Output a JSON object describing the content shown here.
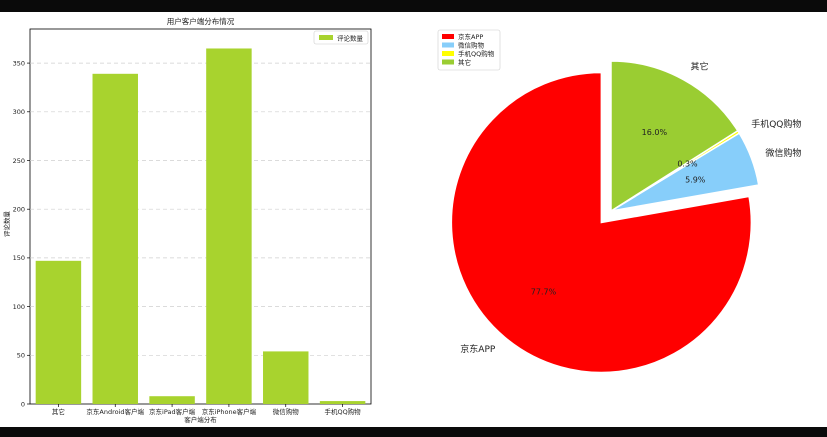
{
  "chart_data": [
    {
      "type": "bar",
      "title": "用户客户端分布情况",
      "xlabel": "客户端分布",
      "ylabel": "评论数量",
      "categories": [
        "其它",
        "京东Android客户端",
        "京东iPad客户端",
        "京东iPhone客户端",
        "微信购物",
        "手机QQ购物"
      ],
      "series": [
        {
          "name": "评论数量",
          "values": [
            147,
            339,
            8,
            365,
            54,
            3
          ]
        }
      ],
      "ylim": [
        0,
        385
      ],
      "yticks": [
        0,
        50,
        100,
        150,
        200,
        250,
        300,
        350
      ],
      "grid": true,
      "legend_position": "top-right",
      "color": "#a8d32e"
    },
    {
      "type": "pie",
      "labels": [
        "京东APP",
        "微信购物",
        "手机QQ购物",
        "其它"
      ],
      "values": [
        77.7,
        5.9,
        0.3,
        16.0
      ],
      "value_labels": [
        "77.7%",
        "5.9%",
        "0.3%",
        "16.0%"
      ],
      "colors": [
        "#ff0000",
        "#87cefa",
        "#ffff00",
        "#9acd32"
      ],
      "explode": [
        0.1,
        0,
        0,
        0
      ],
      "legend_position": "top-left"
    }
  ]
}
